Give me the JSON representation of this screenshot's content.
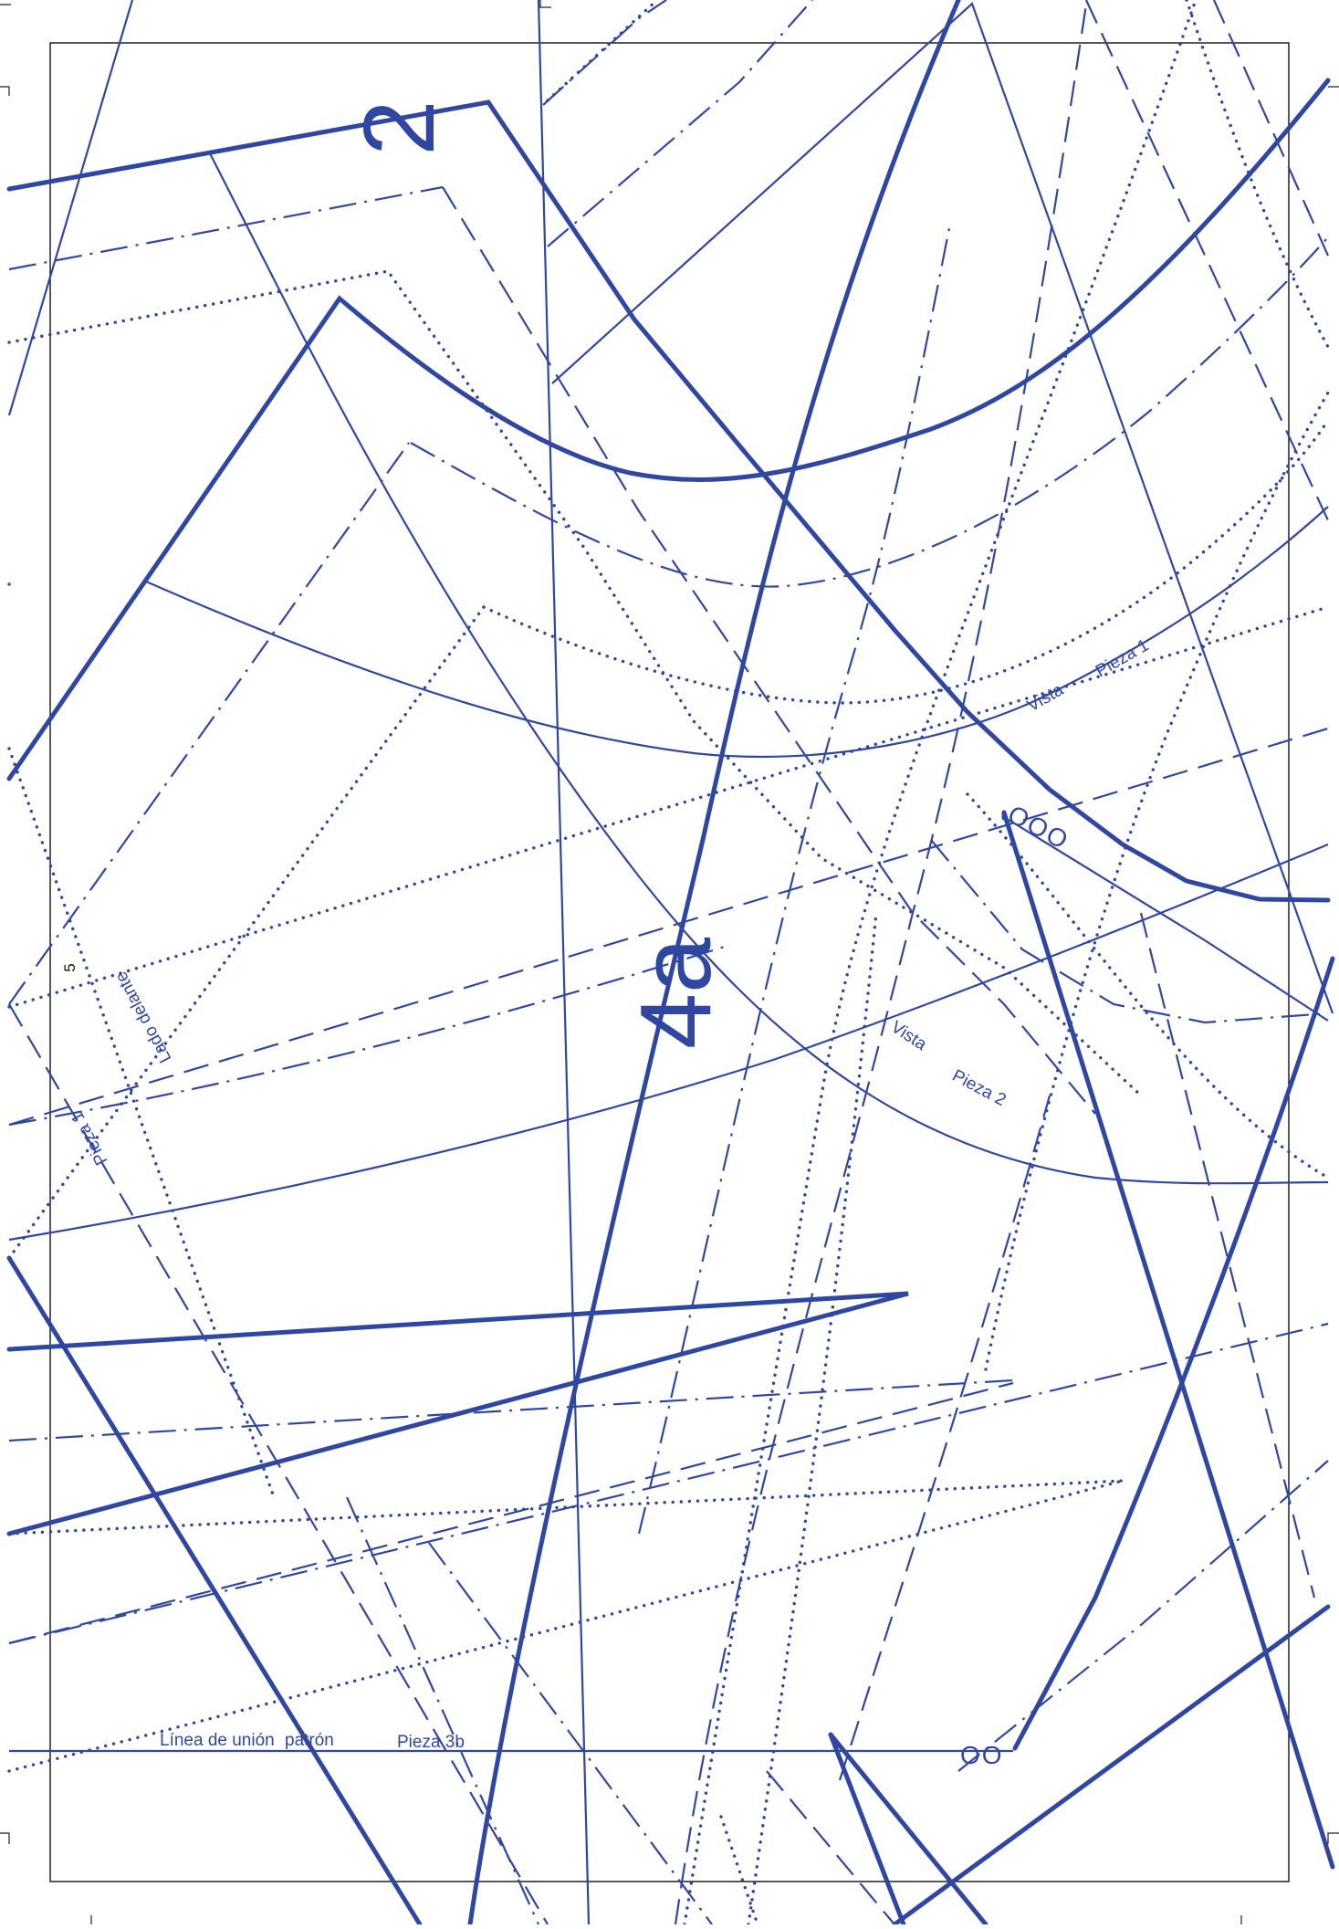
{
  "colors": {
    "line": "#2f47a0",
    "frame": "#111111",
    "background": "#ffffff"
  },
  "page_marks": {
    "page_number": "5"
  },
  "piece_numbers": {
    "piece_2": "2",
    "piece_4a": "4a"
  },
  "labels": {
    "vista_pieza1_a": "Vista",
    "vista_pieza1_b": "Pieza 1",
    "vista_pieza2_a": "Vista",
    "vista_pieza2_b": "Pieza 2",
    "lado_delante": "Lado delante",
    "pieza1_side": "Pieza 1",
    "linea_union": "Línea de unión",
    "patron": "patrón",
    "pieza3b": "Pieza 3b"
  },
  "notch_marks": {
    "triple": "OOO",
    "double": "OO"
  }
}
